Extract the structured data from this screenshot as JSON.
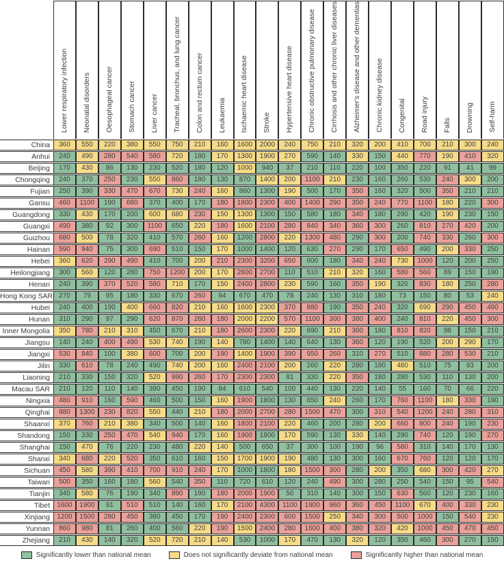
{
  "chart_data": {
    "type": "heatmap",
    "columns": [
      "Lower respiratory infection",
      "Neonatal disorders",
      "Oesophageal cancer",
      "Stomach cancer",
      "Liver cancer",
      "Tracheal, bronchus, and lung cancer",
      "Colon and rectum cancer",
      "Leukaemia",
      "Ischaemic heart disease",
      "Stroke",
      "Hypertensive heart disease",
      "Chronic obstructive pulmonary disease",
      "Cirrhosis and other chronic liver diseases",
      "Alzheimer's disease and other dementias",
      "Chronic kidney disease",
      "Congenital",
      "Road injury",
      "Falls",
      "Drowning",
      "Self-harm"
    ],
    "significance_levels": {
      "L": "Significantly lower than national mean",
      "N": "Does not significantly deviate from national mean",
      "H": "Significantly higher than national mean"
    },
    "colors": {
      "L": "#90bf9f",
      "N": "#f6db88",
      "H": "#e9a19a"
    },
    "rows": [
      {
        "name": "China",
        "values": [
          360,
          550,
          220,
          380,
          550,
          750,
          210,
          160,
          1600,
          2000,
          240,
          750,
          210,
          320,
          200,
          410,
          700,
          210,
          300,
          240
        ],
        "sig": "NNNNNNNNNNNNNNNNNNNN"
      },
      {
        "name": "Anhui",
        "values": [
          240,
          490,
          280,
          540,
          580,
          720,
          180,
          170,
          1300,
          1900,
          270,
          590,
          140,
          330,
          150,
          440,
          770,
          190,
          410,
          320
        ],
        "sig": "LNHHHNLNNNNLLNLNHNHN"
      },
      {
        "name": "Beijing",
        "values": [
          170,
          430,
          86,
          130,
          230,
          520,
          180,
          120,
          1000,
          940,
          37,
          210,
          110,
          220,
          100,
          350,
          220,
          91,
          41,
          99
        ],
        "sig": "LNLLLLLLNLLLLLLLLLLL"
      },
      {
        "name": "Chongqing",
        "values": [
          240,
          370,
          250,
          230,
          550,
          860,
          180,
          130,
          870,
          1400,
          200,
          1100,
          210,
          230,
          160,
          260,
          530,
          240,
          300,
          200
        ],
        "sig": "LLHLNHLLLNNHNLLLLHNL"
      },
      {
        "name": "Fujian",
        "values": [
          250,
          390,
          330,
          470,
          670,
          730,
          240,
          160,
          860,
          1300,
          190,
          500,
          170,
          350,
          160,
          320,
          500,
          350,
          210,
          210
        ],
        "sig": "LLHHHNHNLLNLLHLLLHLL"
      },
      {
        "name": "Gansu",
        "values": [
          460,
          1100,
          190,
          680,
          370,
          400,
          170,
          180,
          1800,
          2300,
          400,
          1400,
          290,
          350,
          240,
          770,
          1100,
          180,
          220,
          300
        ],
        "sig": "HHLHLLLHHHHHHHHHHNLH"
      },
      {
        "name": "Guangdong",
        "values": [
          330,
          430,
          170,
          200,
          600,
          680,
          230,
          150,
          1300,
          1300,
          150,
          580,
          180,
          340,
          180,
          290,
          420,
          190,
          230,
          150
        ],
        "sig": "LNLLNNHNNLLLLHLLLNLL"
      },
      {
        "name": "Guangxi",
        "values": [
          490,
          380,
          92,
          300,
          1100,
          650,
          220,
          180,
          1600,
          2100,
          280,
          840,
          340,
          360,
          300,
          260,
          810,
          270,
          420,
          200
        ],
        "sig": "HLLLHLNHNHHHHHHLHHHL"
      },
      {
        "name": "Guizhou",
        "values": [
          680,
          500,
          78,
          320,
          410,
          570,
          260,
          160,
          1200,
          2800,
          220,
          1300,
          480,
          290,
          300,
          200,
          740,
          330,
          260,
          300
        ],
        "sig": "HNLLLLHNLHNHHLHLHHLH"
      },
      {
        "name": "Hainan",
        "values": [
          590,
          940,
          75,
          300,
          690,
          510,
          150,
          170,
          1000,
          1400,
          120,
          630,
          270,
          290,
          170,
          650,
          490,
          200,
          330,
          250
        ],
        "sig": "HHLLHLLNLLLLHLLHLNHL"
      },
      {
        "name": "Hebei",
        "values": [
          360,
          620,
          290,
          490,
          410,
          700,
          200,
          210,
          2300,
          3200,
          650,
          600,
          180,
          340,
          240,
          730,
          1000,
          120,
          200,
          250
        ],
        "sig": "NHHHLLNHHHHLLHHNHLLL"
      },
      {
        "name": "Heilongjiang",
        "values": [
          300,
          560,
          120,
          280,
          750,
          1200,
          200,
          170,
          2800,
          2700,
          110,
          510,
          210,
          320,
          160,
          580,
          560,
          89,
          150,
          190
        ],
        "sig": "LNLLHHNNHHLLNNLHHLLL"
      },
      {
        "name": "Henan",
        "values": [
          240,
          390,
          370,
          520,
          580,
          710,
          170,
          150,
          2400,
          2800,
          230,
          590,
          160,
          350,
          190,
          320,
          830,
          180,
          250,
          280
        ],
        "sig": "LLHHHNLNHHNLLHNLHNLH"
      },
      {
        "name": "Hong Kong SAR",
        "values": [
          270,
          79,
          95,
          180,
          330,
          670,
          260,
          94,
          670,
          470,
          78,
          240,
          130,
          310,
          180,
          73,
          150,
          80,
          53,
          240
        ],
        "sig": "LLLLLLHLLLLLLLLLLLLN"
      },
      {
        "name": "Hubei",
        "values": [
          240,
          400,
          190,
          400,
          660,
          820,
          210,
          160,
          1600,
          2300,
          370,
          880,
          190,
          350,
          240,
          320,
          690,
          290,
          450,
          460
        ],
        "sig": "LLLNHHNNNNHHLHHLNHHH"
      },
      {
        "name": "Hunan",
        "values": [
          310,
          290,
          97,
          290,
          620,
          870,
          260,
          180,
          2000,
          2200,
          570,
          1100,
          300,
          380,
          400,
          240,
          810,
          220,
          450,
          300
        ],
        "sig": "LLLLHHHHNNHHHHHLHNHH"
      },
      {
        "name": "Inner Mongolia",
        "values": [
          350,
          780,
          210,
          310,
          450,
          670,
          210,
          180,
          2600,
          2300,
          220,
          690,
          210,
          360,
          180,
          810,
          820,
          98,
          150,
          210
        ],
        "sig": "NHNNLLNHHHNLNHLHHLLL"
      },
      {
        "name": "Jiangsu",
        "values": [
          140,
          240,
          400,
          490,
          530,
          740,
          190,
          140,
          780,
          1400,
          140,
          640,
          130,
          360,
          120,
          190,
          520,
          200,
          290,
          170
        ],
        "sig": "LLHHNNLNLLLLLHLLLNNL"
      },
      {
        "name": "Jiangxi",
        "values": [
          530,
          840,
          100,
          380,
          600,
          700,
          200,
          190,
          1400,
          1900,
          390,
          950,
          260,
          310,
          270,
          510,
          880,
          280,
          530,
          210
        ],
        "sig": "HHLNHLNHNHHHHLHLHHHL"
      },
      {
        "name": "Jilin",
        "values": [
          330,
          610,
          78,
          240,
          490,
          740,
          200,
          160,
          2400,
          2100,
          200,
          260,
          220,
          280,
          180,
          480,
          510,
          75,
          93,
          200
        ],
        "sig": "LHLLLNNNHHNLNLLNLLLL"
      },
      {
        "name": "Liaoning",
        "values": [
          210,
          330,
          150,
          320,
          520,
          990,
          260,
          170,
          2300,
          2300,
          81,
          330,
          220,
          350,
          180,
          280,
          530,
          110,
          130,
          200
        ],
        "sig": "LLLLNHHHHHLLNHLLLLLL"
      },
      {
        "name": "Macau SAR",
        "values": [
          210,
          120,
          110,
          140,
          390,
          450,
          190,
          84,
          610,
          540,
          100,
          440,
          130,
          220,
          140,
          55,
          160,
          70,
          66,
          220
        ],
        "sig": "LLLLLLLLLLLLLLLLLLLL"
      },
      {
        "name": "Ningxia",
        "values": [
          480,
          910,
          160,
          590,
          460,
          500,
          150,
          160,
          1900,
          1800,
          130,
          650,
          240,
          260,
          170,
          760,
          1100,
          180,
          330,
          190
        ],
        "sig": "HHLHLLLNHLLLNLLHHNHL"
      },
      {
        "name": "Qinghai",
        "values": [
          880,
          1300,
          230,
          820,
          550,
          440,
          210,
          180,
          2000,
          2700,
          280,
          1500,
          470,
          300,
          310,
          540,
          1200,
          240,
          280,
          310
        ],
        "sig": "HHHHNLNHHHHHHLHHHHHH"
      },
      {
        "name": "Shaanxi",
        "values": [
          370,
          760,
          210,
          380,
          340,
          500,
          140,
          160,
          1800,
          2100,
          220,
          460,
          200,
          280,
          200,
          660,
          800,
          240,
          190,
          230
        ],
        "sig": "NHNNLLLNHHNLLLNHHHLH"
      },
      {
        "name": "Shandong",
        "values": [
          150,
          330,
          250,
          470,
          540,
          940,
          170,
          160,
          1900,
          1800,
          170,
          590,
          130,
          330,
          140,
          290,
          740,
          120,
          190,
          270
        ],
        "sig": "LLHHNHLNHLNLLNLLHLLH"
      },
      {
        "name": "Shanghai",
        "values": [
          150,
          470,
          76,
          220,
          230,
          480,
          220,
          140,
          500,
          650,
          37,
          300,
          100,
          190,
          96,
          580,
          310,
          140,
          170,
          130
        ],
        "sig": "LNLLLLNNLLLLLLLHLLLL"
      },
      {
        "name": "Shanxi",
        "values": [
          340,
          680,
          220,
          520,
          350,
          610,
          160,
          150,
          1700,
          1900,
          190,
          480,
          130,
          300,
          160,
          670,
          760,
          120,
          120,
          170
        ],
        "sig": "NHNHLLLNNNNLLLLHHLLL"
      },
      {
        "name": "Sichuan",
        "values": [
          450,
          580,
          390,
          410,
          700,
          910,
          240,
          170,
          1000,
          1800,
          180,
          1500,
          300,
          280,
          200,
          350,
          680,
          300,
          420,
          270
        ],
        "sig": "HNHHHHHNLLNHHLNLNHHN"
      },
      {
        "name": "Taiwan",
        "values": [
          500,
          350,
          160,
          180,
          560,
          540,
          350,
          110,
          720,
          610,
          120,
          240,
          490,
          300,
          280,
          250,
          540,
          150,
          95,
          540
        ],
        "sig": "HLLLNLHLLLLLHLLLLLLH"
      },
      {
        "name": "Tianjin",
        "values": [
          340,
          580,
          76,
          190,
          340,
          890,
          190,
          180,
          2000,
          1900,
          50,
          310,
          140,
          300,
          150,
          630,
          560,
          120,
          230,
          160
        ],
        "sig": "LNLLLHLHHHLLLLLHLLLL"
      },
      {
        "name": "Tibet",
        "values": [
          1600,
          1900,
          91,
          510,
          510,
          140,
          160,
          170,
          2100,
          4300,
          1100,
          1900,
          960,
          360,
          450,
          1100,
          670,
          400,
          330,
          230
        ],
        "sig": "HHLHLLLNHHHHHHHHNHHN"
      },
      {
        "name": "Xinjiang",
        "values": [
          1200,
          1500,
          280,
          450,
          380,
          450,
          170,
          190,
          2400,
          2300,
          600,
          1500,
          250,
          340,
          300,
          500,
          1000,
          150,
          540,
          230
        ],
        "sig": "HHHHLLLHHHHHNHHHHLHN"
      },
      {
        "name": "Yunnan",
        "values": [
          860,
          980,
          81,
          260,
          400,
          560,
          220,
          190,
          1500,
          2400,
          280,
          1600,
          400,
          380,
          320,
          420,
          1000,
          450,
          470,
          450
        ],
        "sig": "HHLLLLNHNHHHHHHNHHHH"
      },
      {
        "name": "Zhejiang",
        "values": [
          210,
          430,
          140,
          320,
          520,
          720,
          210,
          140,
          530,
          1000,
          170,
          470,
          130,
          320,
          120,
          350,
          460,
          300,
          270,
          150
        ],
        "sig": "LNLLNNNNLLNLLNLLLHLL"
      }
    ]
  },
  "legend": {
    "items": [
      {
        "key": "L",
        "label": "Significantly lower than national mean"
      },
      {
        "key": "N",
        "label": "Does not significantly deviate from national mean"
      },
      {
        "key": "H",
        "label": "Significantly higher than national mean"
      }
    ]
  }
}
